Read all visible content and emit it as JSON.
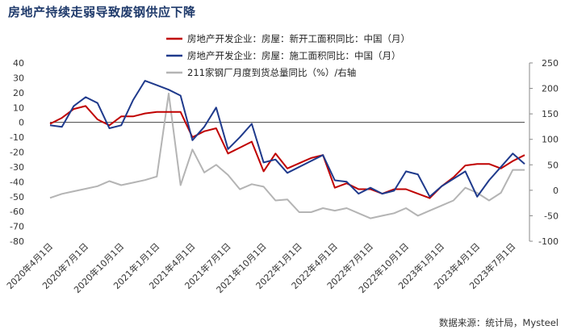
{
  "title": "房地产持续走弱导致废钢供应下降",
  "source": "数据来源：统计局，Mysteel",
  "chart_data": {
    "type": "line",
    "x": [
      "2020-04",
      "2020-05",
      "2020-06",
      "2020-07",
      "2020-08",
      "2020-09",
      "2020-10",
      "2020-11",
      "2020-12",
      "2021-01",
      "2021-02",
      "2021-03",
      "2021-04",
      "2021-05",
      "2021-06",
      "2021-07",
      "2021-08",
      "2021-09",
      "2021-10",
      "2021-11",
      "2021-12",
      "2022-01",
      "2022-02",
      "2022-03",
      "2022-04",
      "2022-05",
      "2022-06",
      "2022-07",
      "2022-08",
      "2022-09",
      "2022-10",
      "2022-11",
      "2022-12",
      "2023-01",
      "2023-02",
      "2023-03",
      "2023-04",
      "2023-05",
      "2023-06",
      "2023-07",
      "2023-08"
    ],
    "x_tick_labels": [
      "2020年4月1日",
      "2020年7月1日",
      "2020年10月1日",
      "2021年1月1日",
      "2021年4月1日",
      "2021年7月1日",
      "2021年10月1日",
      "2022年1月1日",
      "2022年4月1日",
      "2022年7月1日",
      "2022年10月1日",
      "2023年1月1日",
      "2023年4月1日",
      "2023年7月1日"
    ],
    "ylim_left": [
      -80,
      40
    ],
    "yticks_left": [
      40,
      30,
      20,
      10,
      0,
      -10,
      -20,
      -30,
      -40,
      -50,
      -60,
      -70,
      -80
    ],
    "ylim_right": [
      -100,
      250
    ],
    "yticks_right": [
      250,
      200,
      150,
      100,
      50,
      0,
      -50,
      -100
    ],
    "series": [
      {
        "name": "房地产开发企业：房屋：新开工面积同比：中国（月）",
        "axis": "left",
        "color": "#c00000",
        "values": [
          -1,
          3,
          9,
          11,
          2,
          -2,
          4,
          4,
          6,
          7,
          7,
          7,
          -10,
          -6,
          -4,
          -21,
          -17,
          -13,
          -33,
          -21,
          -31,
          null,
          -24,
          -22,
          -44,
          -41,
          -45,
          -45,
          -48,
          -45,
          -45,
          null,
          -51,
          -43,
          -37,
          -29,
          -28,
          -28,
          -31,
          -26,
          -22
        ]
      },
      {
        "name": "房地产开发企业：房屋：施工面积同比：中国（月）",
        "axis": "left",
        "color": "#1f3a8c",
        "values": [
          -2,
          -3,
          11,
          17,
          13,
          -4,
          -2,
          15,
          28,
          25,
          22,
          18,
          -12,
          -3,
          10,
          -18,
          -10,
          -1,
          -27,
          -25,
          -34,
          null,
          null,
          -22,
          -39,
          -40,
          -48,
          -44,
          -48,
          -46,
          -33,
          -35,
          -50,
          -43,
          -38,
          -33,
          -50,
          -39,
          -30,
          -21,
          -28
        ]
      },
      {
        "name": "211家钢厂月度到货总量同比（%）/右轴",
        "axis": "right",
        "color": "#b4b4b4",
        "values": [
          -15,
          -7,
          -2,
          3,
          8,
          18,
          10,
          15,
          20,
          27,
          190,
          10,
          80,
          35,
          50,
          30,
          2,
          12,
          7,
          -20,
          -18,
          -43,
          -43,
          -35,
          -40,
          -35,
          -45,
          -55,
          -50,
          -45,
          -35,
          -50,
          -40,
          -30,
          -20,
          5,
          -5,
          -20,
          -5,
          40,
          40
        ]
      }
    ],
    "grid": false,
    "legend_position": "top"
  }
}
